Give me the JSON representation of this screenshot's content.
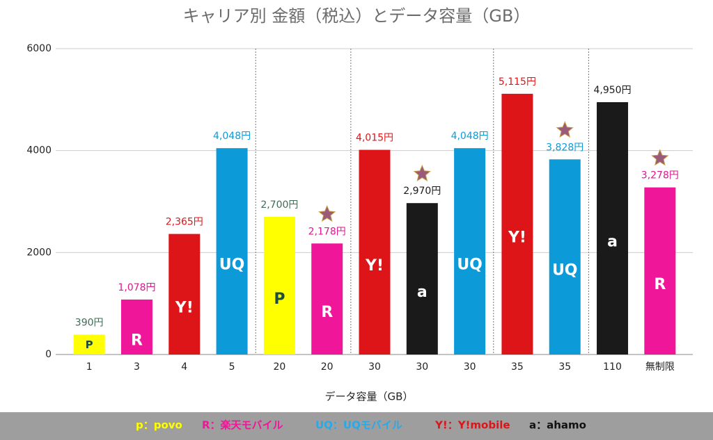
{
  "chart_data": {
    "type": "bar",
    "title": "キャリア別 金額（税込）とデータ容量（GB）",
    "x_label": "データ容量（GB）",
    "categories": [
      "1",
      "3",
      "4",
      "5",
      "20",
      "20",
      "30",
      "30",
      "30",
      "35",
      "35",
      "110",
      "無制限"
    ],
    "values": [
      390,
      1078,
      2365,
      4048,
      2700,
      2178,
      4015,
      2970,
      4048,
      5115,
      3828,
      4950,
      3278
    ],
    "value_labels": [
      "390円",
      "1,078円",
      "2,365円",
      "4,048円",
      "2,700円",
      "2,178円",
      "4,015円",
      "2,970円",
      "4,048円",
      "5,115円",
      "3,828円",
      "4,950円",
      "3,278円"
    ],
    "bar_labels": [
      "P",
      "R",
      "Y!",
      "UQ",
      "P",
      "R",
      "Y!",
      "a",
      "UQ",
      "Y!",
      "UQ",
      "a",
      "R"
    ],
    "colors": [
      "#ffff00",
      "#f0169a",
      "#dd1518",
      "#0d9ad8",
      "#ffff00",
      "#f0169a",
      "#dd1518",
      "#1a1a1a",
      "#0d9ad8",
      "#dd1518",
      "#0d9ad8",
      "#1a1a1a",
      "#f0169a"
    ],
    "value_label_colors": [
      "#3d6b55",
      "#e0168f",
      "#dd1518",
      "#0d9ad8",
      "#3d6b55",
      "#e0168f",
      "#dd1518",
      "#1a1a1a",
      "#0d9ad8",
      "#dd1518",
      "#0d9ad8",
      "#1a1a1a",
      "#e0168f"
    ],
    "bar_label_colors": [
      "#1e4d3a",
      "#ffffff",
      "#ffffff",
      "#ffffff",
      "#1e4d3a",
      "#ffffff",
      "#ffffff",
      "#ffffff",
      "#ffffff",
      "#ffffff",
      "#ffffff",
      "#ffffff",
      "#ffffff"
    ],
    "star": [
      false,
      false,
      false,
      false,
      false,
      true,
      false,
      true,
      false,
      false,
      true,
      false,
      true
    ],
    "divider_before": [
      false,
      false,
      false,
      false,
      true,
      false,
      true,
      false,
      false,
      true,
      false,
      true,
      false
    ],
    "ylim": [
      0,
      6000
    ],
    "yticks": [
      0,
      2000,
      4000,
      6000
    ],
    "grid": true,
    "legend": [
      {
        "text": "p：povo",
        "color": "#ffff00"
      },
      {
        "text": "R：楽天モバイル",
        "color": "#f0169a"
      },
      {
        "text": "UQ：UQモバイル",
        "color": "#29a9e8"
      },
      {
        "text": "Y!：Y!mobile",
        "color": "#dd1518"
      },
      {
        "text": "a：ahamo",
        "color": "#111111"
      }
    ]
  }
}
